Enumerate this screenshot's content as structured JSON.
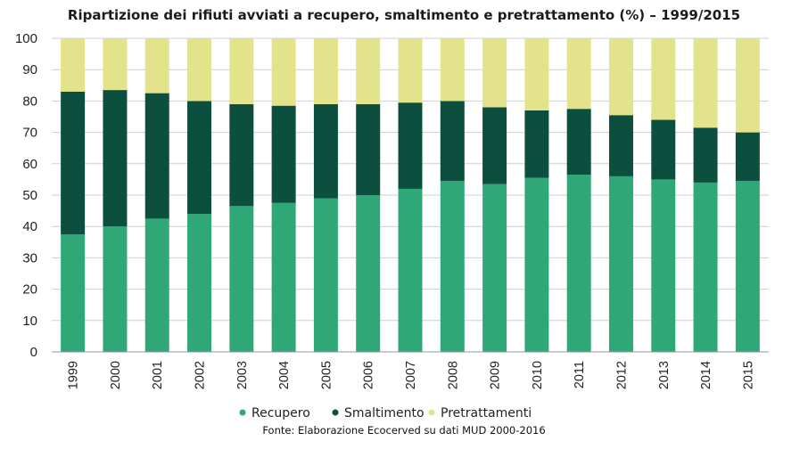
{
  "chart_data": {
    "type": "bar",
    "stacked": true,
    "title": "Ripartizione dei rifiuti avviati a recupero, smaltimento e pretrattamento (%) – 1999/2015",
    "source": "Fonte: Elaborazione Ecocerved su dati MUD 2000-2016",
    "categories": [
      "1999",
      "2000",
      "2001",
      "2002",
      "2003",
      "2004",
      "2005",
      "2006",
      "2007",
      "2008",
      "2009",
      "2010",
      "2011",
      "2012",
      "2013",
      "2014",
      "2015"
    ],
    "ylim": [
      0,
      100
    ],
    "yticks": [
      0,
      10,
      20,
      30,
      40,
      50,
      60,
      70,
      80,
      90,
      100
    ],
    "grid": true,
    "legend_position": "bottom",
    "series": [
      {
        "name": "Recupero",
        "color": "#2fa777",
        "values": [
          37.5,
          40,
          42.5,
          44,
          46.5,
          47.5,
          49,
          50,
          52,
          54.5,
          53.5,
          55.5,
          56.5,
          56,
          55,
          54,
          54.5
        ]
      },
      {
        "name": "Smaltimento",
        "color": "#0c4f3e",
        "values": [
          45.5,
          43.5,
          40,
          36,
          32.5,
          31,
          30,
          29,
          27.5,
          25.5,
          24.5,
          21.5,
          21,
          19.5,
          19,
          17.5,
          15.5
        ]
      },
      {
        "name": "Pretrattamenti",
        "color": "#e2e38a",
        "values": [
          17,
          16.5,
          17.5,
          20,
          21,
          21.5,
          21,
          21,
          20.5,
          20,
          22,
          23,
          22.5,
          24.5,
          26,
          28.5,
          30
        ]
      }
    ]
  }
}
